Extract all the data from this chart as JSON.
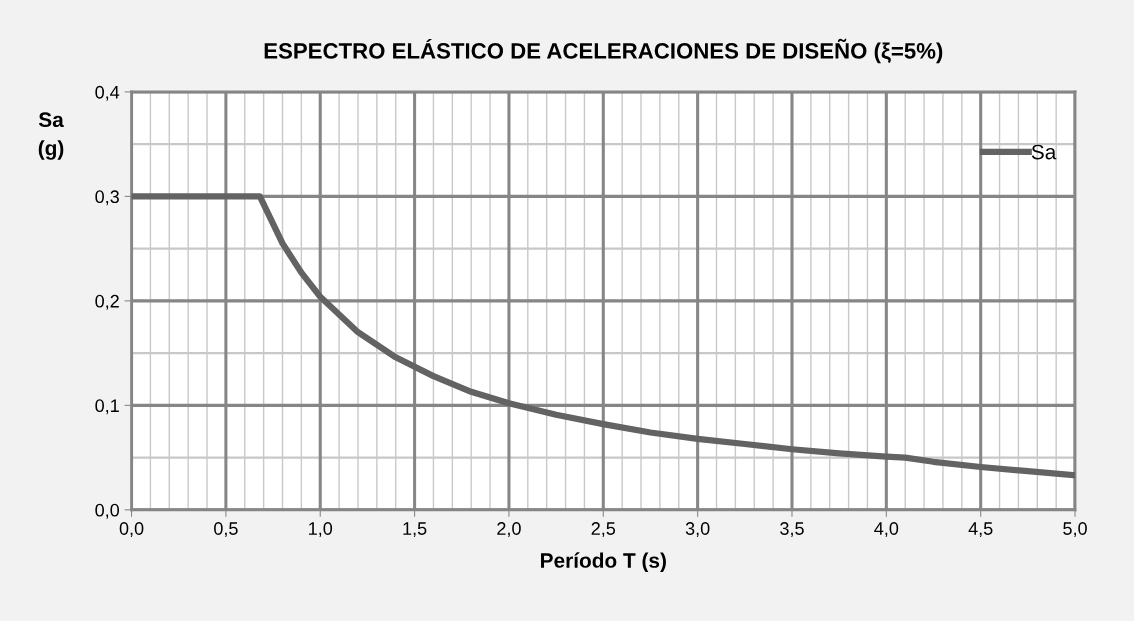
{
  "chart_data": {
    "type": "line",
    "title": "ESPECTRO ELÁSTICO DE ACELERACIONES DE DISEÑO (ξ=5%)",
    "xlabel": "Período T (s)",
    "ylabel": "Sa\n(g)",
    "x": [
      0,
      0.68,
      0.8,
      0.9,
      1.0,
      1.2,
      1.4,
      1.6,
      1.8,
      2.0,
      2.25,
      2.5,
      2.75,
      3.0,
      3.25,
      3.5,
      3.75,
      4.0,
      4.1,
      4.25,
      4.5,
      4.75,
      5.0
    ],
    "series": [
      {
        "name": "Sa",
        "color": "#636363",
        "values": [
          0.3,
          0.3,
          0.255,
          0.227,
          0.204,
          0.17,
          0.146,
          0.128,
          0.113,
          0.102,
          0.091,
          0.082,
          0.074,
          0.068,
          0.063,
          0.058,
          0.054,
          0.051,
          0.05,
          0.046,
          0.041,
          0.037,
          0.033
        ]
      }
    ],
    "xlim": [
      0,
      5
    ],
    "ylim": [
      0,
      0.4
    ],
    "xticks": [
      {
        "value": 0,
        "label": "0,0"
      },
      {
        "value": 0.5,
        "label": "0,5"
      },
      {
        "value": 1,
        "label": "1,0"
      },
      {
        "value": 1.5,
        "label": "1,5"
      },
      {
        "value": 2,
        "label": "2,0"
      },
      {
        "value": 2.5,
        "label": "2,5"
      },
      {
        "value": 3,
        "label": "3,0"
      },
      {
        "value": 3.5,
        "label": "3,5"
      },
      {
        "value": 4,
        "label": "4,0"
      },
      {
        "value": 4.5,
        "label": "4,5"
      },
      {
        "value": 5,
        "label": "5,0"
      }
    ],
    "yticks": [
      {
        "value": 0,
        "label": "0,0"
      },
      {
        "value": 0.1,
        "label": "0,1"
      },
      {
        "value": 0.2,
        "label": "0,2"
      },
      {
        "value": 0.3,
        "label": "0,3"
      },
      {
        "value": 0.4,
        "label": "0,4"
      }
    ],
    "grid": true,
    "legend": "top right",
    "marker": "none",
    "line_style": "solid"
  }
}
